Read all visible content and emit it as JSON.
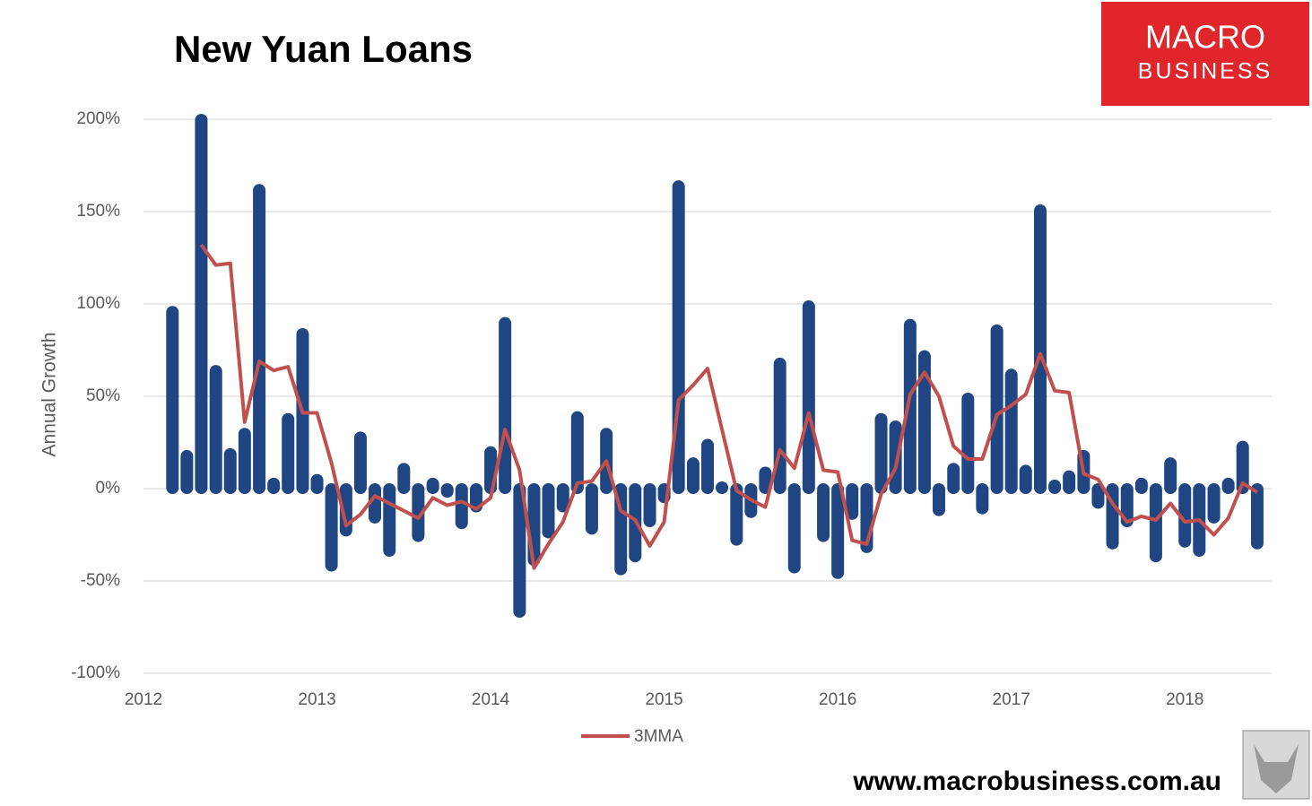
{
  "chart_data": {
    "type": "bar",
    "title": "New Yuan Loans",
    "ylabel": "Annual Growth",
    "x": [
      2012.167,
      2012.25,
      2012.333,
      2012.417,
      2012.5,
      2012.583,
      2012.667,
      2012.75,
      2012.833,
      2012.917,
      2013.0,
      2013.083,
      2013.167,
      2013.25,
      2013.333,
      2013.417,
      2013.5,
      2013.583,
      2013.667,
      2013.75,
      2013.833,
      2013.917,
      2014.0,
      2014.083,
      2014.167,
      2014.25,
      2014.333,
      2014.417,
      2014.5,
      2014.583,
      2014.667,
      2014.75,
      2014.833,
      2014.917,
      2015.0,
      2015.083,
      2015.167,
      2015.25,
      2015.333,
      2015.417,
      2015.5,
      2015.583,
      2015.667,
      2015.75,
      2015.833,
      2015.917,
      2016.0,
      2016.083,
      2016.167,
      2016.25,
      2016.333,
      2016.417,
      2016.5,
      2016.583,
      2016.667,
      2016.75,
      2016.833,
      2016.917,
      2017.0,
      2017.083,
      2017.167,
      2017.25,
      2017.333,
      2017.417,
      2017.5,
      2017.583,
      2017.667,
      2017.75,
      2017.833,
      2017.917,
      2018.0,
      2018.083,
      2018.167,
      2018.25,
      2018.333,
      2018.417
    ],
    "series": [
      {
        "type": "bar",
        "color": "#1f4682",
        "values": [
          96,
          18,
          200,
          64,
          19,
          30,
          162,
          3,
          38,
          84,
          5,
          -42,
          -23,
          28,
          -16,
          -34,
          11,
          -26,
          3,
          -2,
          -19,
          -10,
          20,
          90,
          -67,
          -39,
          -24,
          -10,
          39,
          -22,
          30,
          -44,
          -37,
          -18,
          -5,
          164,
          14,
          24,
          1,
          -28,
          -13,
          9,
          68,
          -43,
          99,
          -26,
          -46,
          -14,
          -32,
          38,
          34,
          89,
          72,
          -12,
          11,
          49,
          -11,
          86,
          62,
          10,
          151,
          2,
          7,
          18,
          -8,
          -30,
          -18,
          3,
          -37,
          14,
          -29,
          -34,
          -16,
          3,
          23,
          -30
        ]
      },
      {
        "type": "line",
        "name": "3MMA",
        "color": "#c0504d",
        "values": [
          null,
          null,
          132,
          121,
          122,
          36,
          69,
          64,
          66,
          41,
          41,
          14,
          -20,
          -14,
          -4,
          -8,
          -12,
          -16,
          -5,
          -9,
          -7,
          -11,
          -5,
          32,
          10,
          -43,
          -30,
          -18,
          3,
          4,
          15,
          -12,
          -17,
          -31,
          -18,
          48,
          56,
          65,
          32,
          -1,
          -6,
          -10,
          21,
          11,
          41,
          10,
          9,
          -28,
          -30,
          -3,
          11,
          51,
          63,
          50,
          23,
          16,
          16,
          40,
          45,
          51,
          73,
          53,
          52,
          8,
          5,
          -8,
          -18,
          -15,
          -17,
          -8,
          -18,
          -17,
          -25,
          -16,
          3,
          -2
        ]
      }
    ],
    "xlim": [
      2012,
      2018.5
    ],
    "xticks": [
      2012,
      2013,
      2014,
      2015,
      2016,
      2017,
      2018
    ],
    "ylim": [
      -100,
      200
    ],
    "yticks": [
      {
        "value": -100,
        "label": "-100%"
      },
      {
        "value": -50,
        "label": "-50%"
      },
      {
        "value": 0,
        "label": "0%"
      },
      {
        "value": 50,
        "label": "50%"
      },
      {
        "value": 100,
        "label": "100%"
      },
      {
        "value": 150,
        "label": "150%"
      },
      {
        "value": 200,
        "label": "200%"
      }
    ],
    "grid": true,
    "legend": "bottom"
  },
  "logo": {
    "line1": "MACRO",
    "line2": "BUSINESS"
  },
  "footer": "www.macrobusiness.com.au"
}
